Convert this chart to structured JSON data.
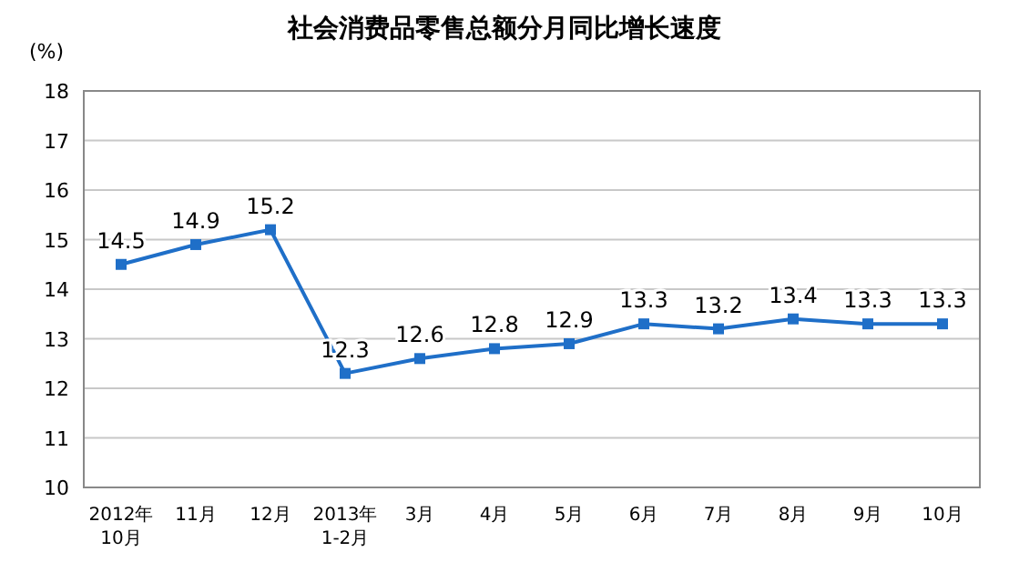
{
  "chart_data": {
    "type": "line",
    "title": "社会消费品零售总额分月同比增长速度",
    "ylabel": "(%)",
    "categories": [
      "2012年\n10月",
      "11月",
      "12月",
      "2013年\n1-2月",
      "3月",
      "4月",
      "5月",
      "6月",
      "7月",
      "8月",
      "9月",
      "10月"
    ],
    "series": [
      {
        "color": "#1f6fc8",
        "values": [
          14.5,
          14.9,
          15.2,
          12.3,
          12.6,
          12.8,
          12.9,
          13.3,
          13.2,
          13.4,
          13.3,
          13.3
        ]
      }
    ],
    "ylim": [
      10,
      18
    ],
    "yticks": [
      10,
      11,
      12,
      13,
      14,
      15,
      16,
      17,
      18
    ],
    "grid": "y",
    "data_labels": true,
    "marker": "square",
    "line_style": "solid"
  }
}
